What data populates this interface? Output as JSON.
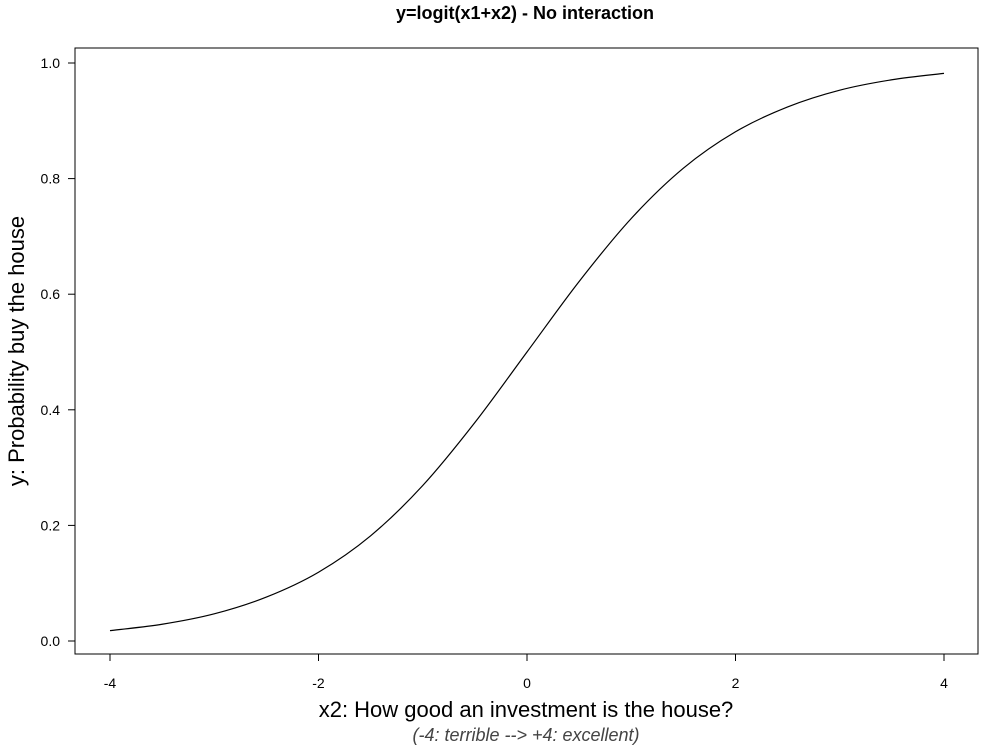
{
  "chart_data": {
    "type": "line",
    "title": "y=logit(x1+x2)  - No interaction",
    "xlabel": "x2: How good an investment is the house?",
    "xlabel_sub": "(-4: terrible --> +4: excellent)",
    "ylabel": "y: Probability buy the house",
    "xlim": [
      -4,
      4
    ],
    "ylim": [
      0,
      1
    ],
    "x_ticks": [
      -4,
      -2,
      0,
      2,
      4
    ],
    "x_tick_labels": [
      "-4",
      "-2",
      "0",
      "2",
      "4"
    ],
    "y_ticks": [
      0,
      0.2,
      0.4,
      0.6,
      0.8,
      1.0
    ],
    "y_tick_labels": [
      "0.0",
      "0.2",
      "0.4",
      "0.6",
      "0.8",
      "1.0"
    ],
    "grid": false,
    "series": [
      {
        "color": "#000000",
        "x": [
          -4,
          -3.5,
          -3,
          -2.5,
          -2,
          -1.5,
          -1,
          -0.5,
          0,
          0.5,
          1,
          1.5,
          2,
          2.5,
          3,
          3.5,
          4
        ],
        "y": [
          0.018,
          0.029,
          0.047,
          0.076,
          0.119,
          0.182,
          0.269,
          0.378,
          0.5,
          0.622,
          0.731,
          0.818,
          0.881,
          0.924,
          0.953,
          0.971,
          0.982
        ]
      }
    ]
  }
}
